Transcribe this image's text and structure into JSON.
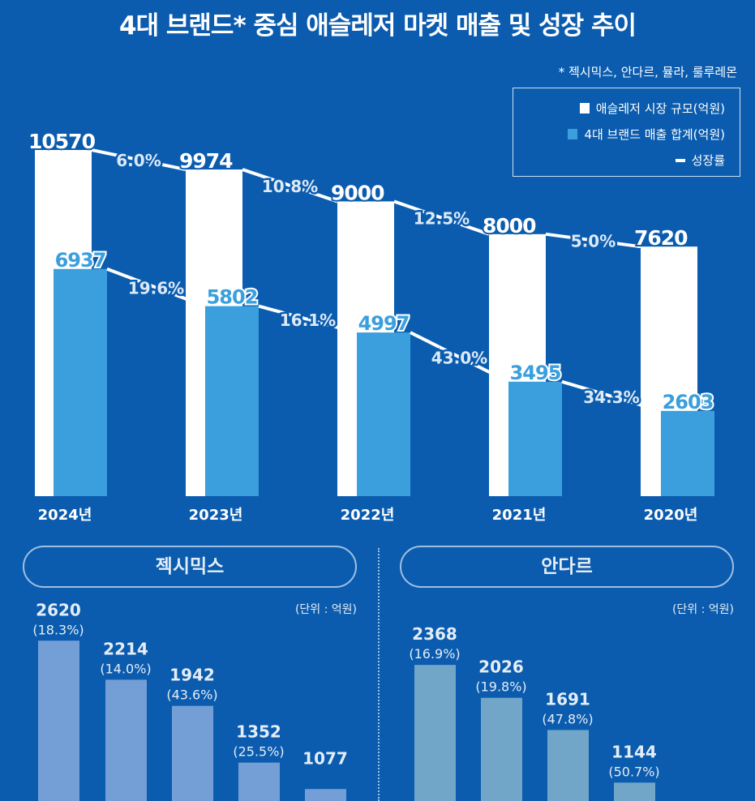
{
  "title": "4대 브랜드* 중심 애슬레저 마켓 매출 및 성장 추이",
  "note": "* 젝시믹스, 안다르, 뮬라, 룰루레몬",
  "colors": {
    "background": "#0b5cae",
    "market": "#ffffff",
    "brands": "#3a9fdc",
    "xexymix": "#739fd6",
    "andar": "#71a6c9"
  },
  "chart_data": [
    {
      "type": "bar",
      "categories": [
        "2024년",
        "2023년",
        "2022년",
        "2021년",
        "2020년"
      ],
      "legend": [
        "애슬레저 시장 규모(억원)",
        "4대 브랜드 매출 합계(억원)",
        "성장률"
      ],
      "legend_placement": "top-right",
      "series": [
        {
          "name": "애슬레저 시장 규모(억원)",
          "values": [
            10570,
            9974,
            9000,
            8000,
            7620
          ],
          "growth": [
            "6.0%",
            "10.8%",
            "12.5%",
            "5.0%"
          ]
        },
        {
          "name": "4대 브랜드 매출 합계(억원)",
          "values": [
            6937,
            5802,
            4997,
            3495,
            2603
          ],
          "growth": [
            "19.6%",
            "16.1%",
            "43.0%",
            "34.3%"
          ]
        }
      ],
      "ylim": [
        0,
        11000
      ],
      "grid": false
    },
    {
      "type": "bar",
      "title": "젝시믹스",
      "unit": "(단위 : 억원)",
      "values": [
        2620,
        2214,
        1942,
        1352,
        1077
      ],
      "growth": [
        "(18.3%)",
        "(14.0%)",
        "(43.6%)",
        "(25.5%)",
        ""
      ]
    },
    {
      "type": "bar",
      "title": "안다르",
      "unit": "(단위 : 억원)",
      "values": [
        2368,
        2026,
        1691,
        1144
      ],
      "growth": [
        "(16.9%)",
        "(19.8%)",
        "(47.8%)",
        "(50.7%)"
      ]
    }
  ]
}
